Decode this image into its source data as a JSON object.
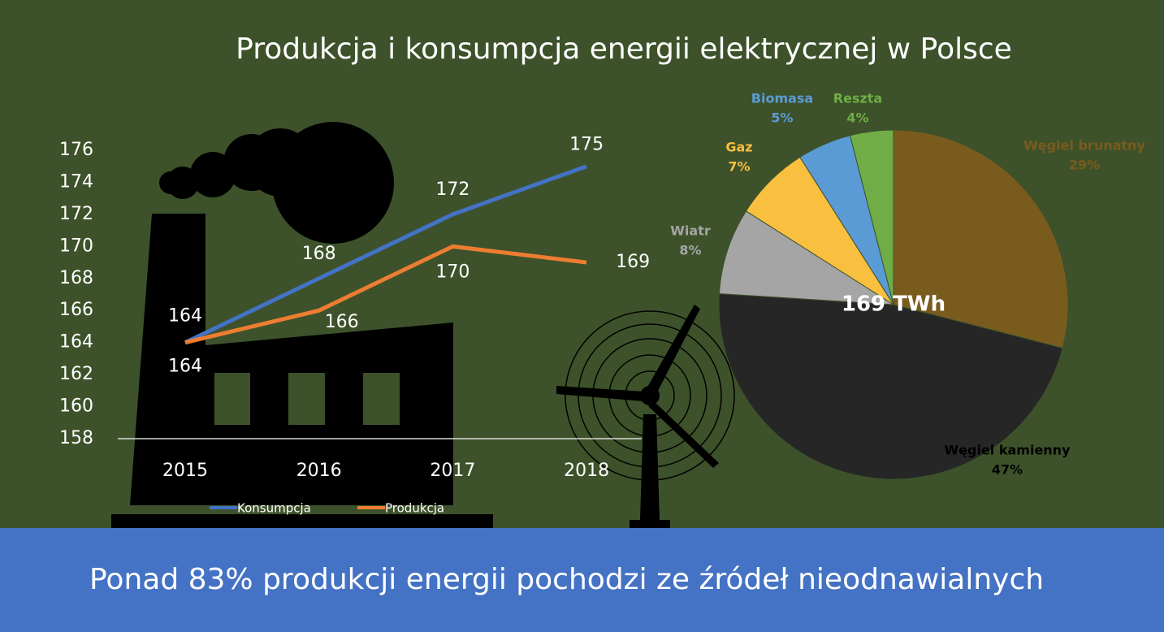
{
  "title": "Produkcja i konsumpcja energii elektrycznej w Polsce",
  "banner": "Ponad 83% produkcji energii pochodzi ze źródeł nieodnawialnych",
  "chart_data": [
    {
      "type": "line",
      "categories": [
        "2015",
        "2016",
        "2017",
        "2018"
      ],
      "series": [
        {
          "name": "Konsumpcja",
          "color": "#4472c4",
          "values": [
            164,
            168,
            172,
            175
          ]
        },
        {
          "name": "Produkcja",
          "color": "#ed7d31",
          "values": [
            164,
            166,
            170,
            169
          ]
        }
      ],
      "ylim": [
        158,
        176
      ],
      "yticks": [
        158,
        160,
        162,
        164,
        166,
        168,
        170,
        172,
        174,
        176
      ],
      "legend": "bottom"
    },
    {
      "type": "pie",
      "annotation": "169 TWh",
      "categories": [
        "Węgiel brunatny",
        "Węgiel kamienny",
        "Wiatr",
        "Gaz",
        "Biomasa",
        "Reszta"
      ],
      "values": [
        29,
        47,
        8,
        7,
        5,
        4
      ],
      "value_labels": [
        "29%",
        "47%",
        "8%",
        "7%",
        "5%",
        "4%"
      ],
      "colors": [
        "#7a5b1e",
        "#262626",
        "#a5a5a5",
        "#f9bf3f",
        "#5b9bd5",
        "#70ad47"
      ],
      "label_colors": [
        "#7a5b1e",
        "#000000",
        "#a5a5a5",
        "#f9bf3f",
        "#5b9bd5",
        "#70ad47"
      ]
    }
  ]
}
